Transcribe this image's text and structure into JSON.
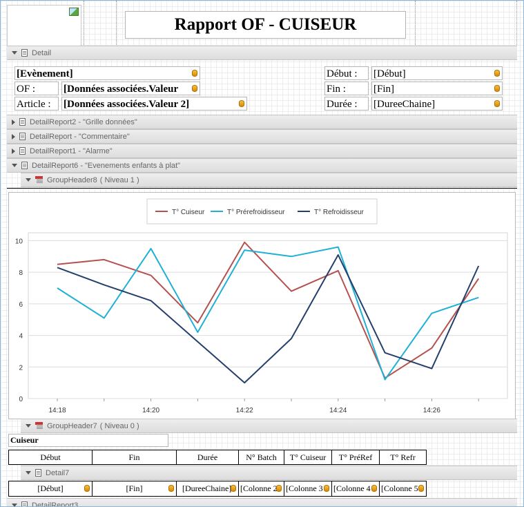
{
  "report": {
    "title": "Rapport OF - CUISEUR"
  },
  "bands": {
    "detail": "Detail",
    "detail_report2": "DetailReport2 - \"Grille données\"",
    "detail_report": "DetailReport - \"Commentaire\"",
    "detail_report1": "DetailReport1 - \"Alarme\"",
    "detail_report6": "DetailReport6 - \"Evenements enfants à plat\"",
    "group_header8": "GroupHeader8",
    "group_header8_level": "( Niveau 1 )",
    "group_header7": "GroupHeader7",
    "group_header7_level": "( Niveau 0 )",
    "detail7": "Detail7",
    "detail_report3": "DetailReport3"
  },
  "detail_fields": {
    "evenement": "[Evènement]",
    "of_label": "OF :",
    "of_value": "[Données associées.Valeur",
    "article_label": "Article :",
    "article_value": "[Données associées.Valeur 2]",
    "debut_label": "Début :",
    "debut_value": "[Début]",
    "fin_label": "Fin :",
    "fin_value": "[Fin]",
    "duree_label": "Durée :",
    "duree_value": "[DureeChaine]"
  },
  "colors": {
    "cuiseur": "#b5514f",
    "prerefroidisseur": "#1fb0d6",
    "refroidisseur": "#243f6b",
    "band_bg": "#e4e4e4",
    "db_icon": "#e9a81d"
  },
  "chart_data": {
    "type": "line",
    "x": [
      "14:18",
      "14:19",
      "14:20",
      "14:21",
      "14:22",
      "14:23",
      "14:24",
      "14:25",
      "14:26",
      "14:27"
    ],
    "x_ticks": [
      "14:18",
      "14:20",
      "14:22",
      "14:24",
      "14:26"
    ],
    "y_ticks": [
      "0",
      "2",
      "4",
      "6",
      "8",
      "10"
    ],
    "ylim": [
      0,
      10.5
    ],
    "grid": true,
    "legend_position": "top-center",
    "series": [
      {
        "name": "T° Cuiseur",
        "values": [
          8.5,
          8.8,
          7.8,
          4.8,
          9.9,
          6.8,
          8.1,
          1.3,
          3.2,
          7.6
        ]
      },
      {
        "name": "T° Prérefroidisseur",
        "values": [
          7.0,
          5.1,
          9.5,
          4.2,
          9.4,
          9.0,
          9.6,
          1.2,
          5.4,
          6.4
        ]
      },
      {
        "name": "T° Refroidisseur",
        "values": [
          8.3,
          7.2,
          6.2,
          3.6,
          1.0,
          3.8,
          9.1,
          2.9,
          1.9,
          8.4
        ]
      }
    ]
  },
  "group": {
    "cuiseur_label": "Cuiseur"
  },
  "table": {
    "headers": [
      "Début",
      "Fin",
      "Durée",
      "N° Batch",
      "T° Cuiseur",
      "T° PréRef",
      "T° Refr"
    ],
    "row": [
      "[Début]",
      "[Fin]",
      "[DureeChaine]",
      "[Colonne 2",
      "[Colonne 3",
      "[Colonne 4",
      "[Colonne 5"
    ]
  }
}
